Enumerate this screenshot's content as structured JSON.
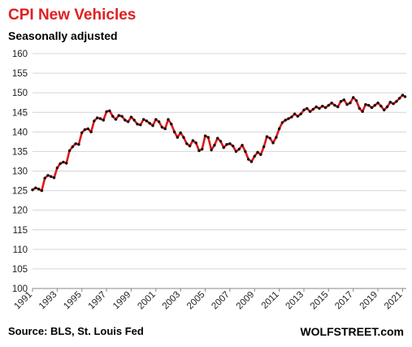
{
  "chart_data": {
    "type": "line",
    "title": "CPI New Vehicles",
    "subtitle": "Seasonally adjusted",
    "source": "Source: BLS, St. Louis Fed",
    "brand": "WOLFSTREET.com",
    "ylim": [
      100,
      160
    ],
    "yticks": [
      "100",
      "105",
      "110",
      "115",
      "120",
      "125",
      "130",
      "135",
      "140",
      "145",
      "150",
      "155",
      "160"
    ],
    "xlim": [
      1991,
      2021.3
    ],
    "xticks": [
      "1991",
      "1993",
      "1995",
      "1997",
      "1999",
      "2001",
      "2003",
      "2005",
      "2007",
      "2009",
      "2011",
      "2013",
      "2015",
      "2017",
      "2019",
      "2021"
    ],
    "grid": true,
    "colors": {
      "line": "#e01818",
      "markers": "#111111",
      "title": "#e02020"
    },
    "series": [
      {
        "x": [
          1991.0,
          1991.25,
          1991.5,
          1991.75,
          1992.0,
          1992.25,
          1992.5,
          1992.75,
          1993.0,
          1993.25,
          1993.5,
          1993.75,
          1994.0,
          1994.25,
          1994.5,
          1994.75,
          1995.0,
          1995.25,
          1995.5,
          1995.75,
          1996.0,
          1996.25,
          1996.5,
          1996.75,
          1997.0,
          1997.25,
          1997.5,
          1997.75,
          1998.0,
          1998.25,
          1998.5,
          1998.75,
          1999.0,
          1999.25,
          1999.5,
          1999.75,
          2000.0,
          2000.25,
          2000.5,
          2000.75,
          2001.0,
          2001.25,
          2001.5,
          2001.75,
          2002.0,
          2002.25,
          2002.5,
          2002.75,
          2003.0,
          2003.25,
          2003.5,
          2003.75,
          2004.0,
          2004.25,
          2004.5,
          2004.75,
          2005.0,
          2005.25,
          2005.5,
          2005.75,
          2006.0,
          2006.25,
          2006.5,
          2006.75,
          2007.0,
          2007.25,
          2007.5,
          2007.75,
          2008.0,
          2008.25,
          2008.5,
          2008.75,
          2009.0,
          2009.25,
          2009.5,
          2009.75,
          2010.0,
          2010.25,
          2010.5,
          2010.75,
          2011.0,
          2011.25,
          2011.5,
          2011.75,
          2012.0,
          2012.25,
          2012.5,
          2012.75,
          2013.0,
          2013.25,
          2013.5,
          2013.75,
          2014.0,
          2014.25,
          2014.5,
          2014.75,
          2015.0,
          2015.25,
          2015.5,
          2015.75,
          2016.0,
          2016.25,
          2016.5,
          2016.75,
          2017.0,
          2017.25,
          2017.5,
          2017.75,
          2018.0,
          2018.25,
          2018.5,
          2018.75,
          2019.0,
          2019.25,
          2019.5,
          2019.75,
          2020.0,
          2020.25,
          2020.5,
          2020.75,
          2021.0,
          2021.2
        ],
        "y": [
          125.2,
          125.7,
          125.4,
          125.0,
          128.2,
          128.9,
          128.6,
          128.3,
          130.8,
          131.9,
          132.3,
          132.0,
          135.2,
          136.2,
          137.0,
          136.8,
          139.8,
          140.6,
          140.8,
          140.0,
          142.8,
          143.6,
          143.4,
          143.0,
          145.2,
          145.4,
          144.0,
          143.2,
          144.2,
          144.0,
          143.0,
          142.6,
          143.8,
          143.0,
          142.0,
          141.8,
          143.2,
          142.8,
          142.2,
          141.6,
          143.2,
          142.6,
          141.2,
          140.8,
          143.2,
          142.0,
          140.0,
          138.6,
          139.8,
          138.6,
          137.0,
          136.4,
          137.8,
          137.2,
          135.2,
          135.6,
          139.0,
          138.6,
          135.4,
          136.6,
          138.4,
          137.6,
          136.0,
          136.8,
          137.0,
          136.4,
          135.0,
          135.6,
          136.6,
          135.0,
          133.0,
          132.4,
          133.8,
          134.8,
          134.2,
          136.2,
          138.8,
          138.4,
          137.2,
          138.6,
          140.8,
          142.4,
          143.0,
          143.4,
          143.8,
          144.6,
          144.0,
          144.6,
          145.6,
          146.0,
          145.2,
          145.8,
          146.4,
          146.0,
          146.6,
          146.2,
          146.8,
          147.4,
          146.8,
          146.4,
          147.8,
          148.2,
          147.0,
          147.4,
          148.8,
          148.0,
          146.0,
          145.2,
          147.0,
          146.8,
          146.2,
          146.8,
          147.4,
          146.6,
          145.6,
          146.4,
          147.6,
          147.2,
          147.8,
          148.6,
          149.4,
          149.0
        ]
      }
    ]
  }
}
